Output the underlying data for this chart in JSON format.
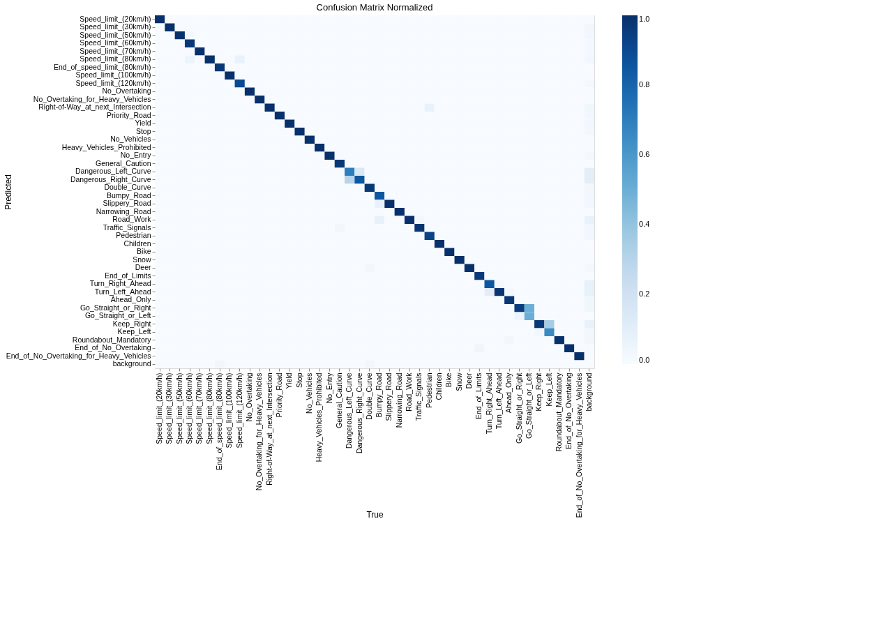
{
  "chart_data": {
    "type": "heatmap",
    "title": "Confusion Matrix Normalized",
    "xlabel": "True",
    "ylabel": "Predicted",
    "categories": [
      "Speed_limit_(20km/h)",
      "Speed_limit_(30km/h)",
      "Speed_limit_(50km/h)",
      "Speed_limit_(60km/h)",
      "Speed_limit_(70km/h)",
      "Speed_limit_(80km/h)",
      "End_of_speed_limit_(80km/h)",
      "Speed_limit_(100km/h)",
      "Speed_limit_(120km/h)",
      "No_Overtaking",
      "No_Overtaking_for_Heavy_Vehicles",
      "Right-of-Way_at_next_Intersection",
      "Priority_Road",
      "Yield",
      "Stop",
      "No_Vehicles",
      "Heavy_Vehicles_Prohibited",
      "No_Entry",
      "General_Caution",
      "Dangerous_Left_Curve",
      "Dangerous_Right_Curve",
      "Double_Curve",
      "Bumpy_Road",
      "Slippery_Road",
      "Narrowing_Road",
      "Road_Work",
      "Traffic_Signals",
      "Pedestrian",
      "Children",
      "Bike",
      "Snow",
      "Deer",
      "End_of_Limits",
      "Turn_Right_Ahead",
      "Turn_Left_Ahead",
      "Ahead_Only",
      "Go_Straight_or_Right",
      "Go_Straight_or_Left",
      "Keep_Right",
      "Keep_Left",
      "Roundabout_Mandatory",
      "End_of_No_Overtaking",
      "End_of_No_Overtaking_for_Heavy_Vehicles",
      "background"
    ],
    "y_categories": [
      "Speed_limit_(20km/h)",
      "Speed_limit_(30km/h)",
      "Speed_limit_(50km/h)",
      "Speed_limit_(60km/h)",
      "Speed_limit_(70km/h)",
      "Speed_limit_(80km/h)",
      "End_of_speed_limit_(80km/h)",
      "Speed_limit_(100km/h)",
      "Speed_limit_(120km/h)",
      "No_Overtaking",
      "No_Overtaking_for_Heavy_Vehicles",
      "Right-of-Way_at_next_Intersection",
      "Priority_Road",
      "Yield",
      "Stop",
      "No_Vehicles",
      "Heavy_Vehicles_Prohibited",
      "No_Entry",
      "General_Caution",
      "Dangerous_Left_Curve",
      "Dangerous_Right_Curve",
      "Double_Curve",
      "Bumpy_Road",
      "Slippery_Road",
      "Narrowing_Road",
      "Road_Work",
      "Traffic_Signals",
      "Pedestrian",
      "Children",
      "Bike",
      "Snow",
      "Deer",
      "End_of_Limits",
      "Turn_Right_Ahead",
      "Turn_Left_Ahead",
      "Ahead_Only",
      "Go_Straight_or_Right",
      "Go_Straight_or_Left",
      "Keep_Right",
      "Keep_Left",
      "Roundabout_Mandatory",
      "End_of_No_Overtaking",
      "End_of_No_Overtaking_for_Heavy_Vehicles",
      "background"
    ],
    "cells": [
      [
        1,
        0,
        0,
        0,
        0,
        0,
        0,
        0,
        0,
        0,
        0,
        0,
        0,
        0,
        0,
        0,
        0,
        0,
        0,
        0,
        0,
        0,
        0,
        0,
        0,
        0,
        0,
        0,
        0,
        0,
        0,
        0,
        0,
        0,
        0,
        0,
        0,
        0,
        0,
        0,
        0,
        0,
        0,
        0
      ],
      [
        0,
        1,
        0,
        0,
        0,
        0,
        0,
        0,
        0,
        0,
        0,
        0,
        0,
        0,
        0,
        0,
        0,
        0,
        0,
        0,
        0,
        0,
        0,
        0,
        0,
        0,
        0,
        0,
        0,
        0,
        0,
        0,
        0,
        0,
        0,
        0,
        0,
        0,
        0,
        0,
        0,
        0,
        0,
        0.03
      ],
      [
        0,
        0,
        1,
        0.02,
        0,
        0,
        0,
        0,
        0,
        0,
        0,
        0,
        0,
        0,
        0,
        0,
        0,
        0,
        0,
        0,
        0,
        0,
        0,
        0,
        0,
        0,
        0,
        0,
        0,
        0,
        0,
        0,
        0,
        0,
        0,
        0,
        0,
        0,
        0,
        0,
        0,
        0,
        0,
        0.03
      ],
      [
        0,
        0,
        0,
        0.97,
        0,
        0,
        0,
        0,
        0,
        0,
        0,
        0,
        0,
        0,
        0,
        0,
        0,
        0,
        0,
        0,
        0,
        0,
        0,
        0,
        0,
        0,
        0,
        0,
        0,
        0,
        0,
        0,
        0,
        0,
        0,
        0,
        0,
        0,
        0,
        0,
        0,
        0,
        0,
        0.02
      ],
      [
        0,
        0,
        0,
        0,
        1,
        0,
        0,
        0,
        0,
        0,
        0,
        0,
        0,
        0,
        0,
        0,
        0,
        0,
        0,
        0,
        0,
        0,
        0,
        0,
        0,
        0,
        0,
        0,
        0,
        0,
        0,
        0,
        0,
        0,
        0,
        0,
        0,
        0,
        0,
        0,
        0,
        0,
        0,
        0.02
      ],
      [
        0,
        0,
        0,
        0.05,
        0,
        1,
        0,
        0,
        0.07,
        0,
        0,
        0,
        0,
        0,
        0,
        0,
        0,
        0,
        0,
        0,
        0,
        0,
        0,
        0,
        0,
        0,
        0,
        0,
        0,
        0,
        0,
        0,
        0,
        0,
        0,
        0,
        0,
        0,
        0,
        0,
        0,
        0,
        0,
        0.03
      ],
      [
        0,
        0,
        0,
        0,
        0,
        0,
        0.97,
        0,
        0,
        0,
        0,
        0,
        0,
        0,
        0,
        0,
        0,
        0,
        0,
        0,
        0,
        0,
        0,
        0,
        0,
        0,
        0,
        0,
        0,
        0,
        0,
        0,
        0,
        0,
        0,
        0,
        0,
        0,
        0,
        0,
        0,
        0,
        0,
        0
      ],
      [
        0,
        0,
        0,
        0,
        0,
        0,
        0,
        1,
        0,
        0,
        0,
        0,
        0,
        0,
        0,
        0,
        0,
        0,
        0,
        0,
        0,
        0,
        0,
        0,
        0,
        0,
        0,
        0,
        0,
        0,
        0,
        0,
        0,
        0,
        0,
        0,
        0,
        0,
        0,
        0,
        0,
        0,
        0,
        0
      ],
      [
        0,
        0,
        0,
        0,
        0,
        0,
        0,
        0,
        0.9,
        0,
        0,
        0,
        0,
        0,
        0,
        0,
        0,
        0,
        0,
        0,
        0,
        0,
        0,
        0,
        0,
        0,
        0,
        0,
        0,
        0,
        0,
        0,
        0,
        0,
        0,
        0,
        0,
        0,
        0,
        0,
        0,
        0,
        0,
        0.02
      ],
      [
        0,
        0,
        0,
        0,
        0,
        0,
        0,
        0,
        0,
        1,
        0,
        0,
        0,
        0,
        0,
        0,
        0,
        0,
        0,
        0,
        0,
        0,
        0,
        0,
        0,
        0,
        0,
        0,
        0,
        0,
        0,
        0,
        0,
        0,
        0,
        0,
        0,
        0,
        0,
        0,
        0,
        0,
        0,
        0
      ],
      [
        0,
        0,
        0,
        0,
        0,
        0,
        0,
        0,
        0,
        0,
        1,
        0,
        0,
        0,
        0,
        0,
        0,
        0,
        0,
        0,
        0,
        0,
        0,
        0,
        0,
        0,
        0,
        0,
        0,
        0,
        0,
        0,
        0,
        0,
        0,
        0,
        0,
        0,
        0,
        0,
        0,
        0,
        0,
        0
      ],
      [
        0,
        0,
        0,
        0,
        0,
        0,
        0,
        0,
        0,
        0,
        0,
        1,
        0,
        0,
        0,
        0,
        0,
        0,
        0,
        0,
        0,
        0,
        0,
        0,
        0,
        0,
        0,
        0.07,
        0,
        0,
        0,
        0,
        0,
        0,
        0,
        0,
        0,
        0,
        0,
        0,
        0,
        0,
        0,
        0.04
      ],
      [
        0,
        0,
        0,
        0,
        0,
        0,
        0,
        0,
        0,
        0,
        0,
        0,
        1,
        0,
        0,
        0,
        0,
        0,
        0,
        0,
        0,
        0,
        0,
        0,
        0,
        0,
        0,
        0,
        0,
        0,
        0,
        0,
        0,
        0,
        0,
        0,
        0,
        0,
        0,
        0,
        0,
        0,
        0,
        0.03
      ],
      [
        0,
        0,
        0,
        0,
        0,
        0,
        0,
        0,
        0,
        0,
        0,
        0,
        0,
        1,
        0,
        0,
        0,
        0,
        0,
        0,
        0,
        0,
        0,
        0,
        0,
        0,
        0,
        0,
        0,
        0,
        0,
        0,
        0,
        0,
        0,
        0,
        0,
        0,
        0,
        0,
        0,
        0,
        0,
        0.03
      ],
      [
        0,
        0,
        0,
        0,
        0,
        0,
        0,
        0,
        0,
        0,
        0,
        0,
        0,
        0,
        1,
        0,
        0,
        0,
        0,
        0,
        0,
        0,
        0,
        0,
        0,
        0,
        0,
        0,
        0,
        0,
        0,
        0,
        0,
        0,
        0,
        0,
        0,
        0,
        0,
        0,
        0,
        0,
        0,
        0.02
      ],
      [
        0,
        0,
        0,
        0,
        0,
        0,
        0,
        0,
        0,
        0,
        0,
        0,
        0,
        0,
        0,
        1,
        0,
        0,
        0,
        0,
        0,
        0,
        0,
        0,
        0,
        0,
        0,
        0,
        0,
        0,
        0,
        0,
        0,
        0,
        0,
        0,
        0,
        0,
        0,
        0,
        0,
        0,
        0,
        0
      ],
      [
        0,
        0,
        0,
        0,
        0,
        0,
        0,
        0,
        0,
        0,
        0,
        0,
        0,
        0,
        0,
        0,
        1,
        0,
        0,
        0,
        0,
        0,
        0,
        0,
        0,
        0,
        0,
        0,
        0,
        0,
        0,
        0,
        0,
        0,
        0,
        0,
        0,
        0,
        0,
        0,
        0,
        0,
        0,
        0
      ],
      [
        0,
        0,
        0,
        0,
        0,
        0,
        0,
        0,
        0,
        0,
        0,
        0,
        0,
        0,
        0,
        0,
        0,
        1,
        0,
        0,
        0,
        0,
        0,
        0,
        0,
        0,
        0,
        0,
        0,
        0,
        0,
        0,
        0,
        0,
        0,
        0,
        0,
        0,
        0,
        0,
        0,
        0,
        0,
        0.02
      ],
      [
        0,
        0,
        0,
        0,
        0,
        0,
        0,
        0,
        0,
        0,
        0,
        0,
        0,
        0,
        0,
        0,
        0,
        0,
        0.97,
        0,
        0,
        0,
        0,
        0,
        0,
        0,
        0,
        0,
        0,
        0,
        0,
        0,
        0,
        0,
        0,
        0,
        0,
        0,
        0,
        0,
        0,
        0,
        0,
        0
      ],
      [
        0,
        0,
        0,
        0,
        0,
        0,
        0,
        0,
        0,
        0,
        0,
        0,
        0,
        0,
        0,
        0,
        0,
        0,
        0,
        0.7,
        0.15,
        0,
        0,
        0,
        0,
        0,
        0,
        0,
        0,
        0,
        0,
        0,
        0,
        0,
        0,
        0,
        0,
        0,
        0,
        0,
        0,
        0,
        0,
        0.1
      ],
      [
        0,
        0,
        0,
        0,
        0,
        0,
        0,
        0,
        0,
        0,
        0,
        0,
        0,
        0,
        0,
        0,
        0,
        0,
        0,
        0.3,
        0.85,
        0,
        0,
        0,
        0,
        0,
        0,
        0,
        0,
        0,
        0,
        0,
        0,
        0,
        0,
        0,
        0,
        0,
        0,
        0,
        0,
        0,
        0,
        0.1
      ],
      [
        0,
        0,
        0,
        0,
        0,
        0,
        0,
        0,
        0,
        0,
        0,
        0,
        0,
        0,
        0,
        0,
        0,
        0,
        0,
        0,
        0,
        0.97,
        0,
        0,
        0,
        0,
        0,
        0,
        0,
        0,
        0,
        0,
        0,
        0,
        0,
        0,
        0,
        0,
        0,
        0,
        0,
        0,
        0,
        0.03
      ],
      [
        0,
        0,
        0,
        0,
        0,
        0,
        0,
        0,
        0,
        0,
        0,
        0,
        0,
        0,
        0,
        0,
        0,
        0,
        0,
        0,
        0,
        0,
        0.85,
        0,
        0,
        0,
        0,
        0,
        0,
        0,
        0,
        0,
        0,
        0,
        0,
        0,
        0,
        0,
        0,
        0,
        0,
        0,
        0,
        0.03
      ],
      [
        0,
        0,
        0,
        0,
        0,
        0,
        0,
        0,
        0,
        0,
        0,
        0,
        0,
        0,
        0,
        0,
        0,
        0,
        0,
        0,
        0,
        0,
        0.07,
        1,
        0,
        0,
        0,
        0,
        0,
        0,
        0,
        0,
        0,
        0,
        0,
        0,
        0,
        0,
        0,
        0,
        0,
        0,
        0,
        0.03
      ],
      [
        0,
        0,
        0,
        0,
        0,
        0,
        0,
        0,
        0,
        0,
        0,
        0,
        0,
        0,
        0,
        0,
        0,
        0,
        0,
        0,
        0,
        0,
        0,
        0,
        1,
        0,
        0,
        0,
        0,
        0,
        0,
        0,
        0,
        0,
        0,
        0,
        0,
        0,
        0,
        0,
        0,
        0,
        0,
        0
      ],
      [
        0,
        0,
        0,
        0,
        0,
        0,
        0,
        0,
        0,
        0,
        0,
        0,
        0,
        0,
        0,
        0,
        0,
        0,
        0,
        0,
        0,
        0,
        0.08,
        0,
        0,
        1,
        0.02,
        0,
        0,
        0,
        0,
        0,
        0,
        0,
        0,
        0,
        0,
        0,
        0,
        0,
        0,
        0,
        0,
        0.07
      ],
      [
        0,
        0,
        0,
        0,
        0,
        0,
        0,
        0,
        0,
        0,
        0,
        0,
        0,
        0,
        0,
        0,
        0,
        0,
        0.03,
        0,
        0,
        0,
        0,
        0,
        0,
        0,
        0.98,
        0,
        0,
        0,
        0,
        0,
        0,
        0,
        0,
        0,
        0,
        0,
        0,
        0,
        0,
        0,
        0,
        0.03
      ],
      [
        0,
        0,
        0,
        0,
        0,
        0,
        0,
        0,
        0,
        0,
        0,
        0,
        0,
        0,
        0,
        0,
        0,
        0,
        0,
        0,
        0,
        0,
        0,
        0,
        0,
        0,
        0,
        0.93,
        0,
        0,
        0,
        0,
        0,
        0,
        0,
        0,
        0,
        0,
        0,
        0,
        0,
        0,
        0,
        0.03
      ],
      [
        0,
        0,
        0,
        0,
        0,
        0,
        0,
        0,
        0,
        0,
        0,
        0,
        0,
        0,
        0,
        0,
        0,
        0,
        0,
        0,
        0,
        0,
        0,
        0,
        0,
        0,
        0,
        0,
        1,
        0,
        0,
        0,
        0,
        0,
        0,
        0,
        0,
        0,
        0,
        0,
        0,
        0,
        0,
        0
      ],
      [
        0,
        0,
        0,
        0,
        0,
        0,
        0,
        0,
        0,
        0,
        0,
        0,
        0,
        0,
        0,
        0,
        0,
        0,
        0,
        0,
        0,
        0,
        0,
        0,
        0,
        0,
        0,
        0,
        0,
        1,
        0,
        0,
        0,
        0,
        0,
        0,
        0,
        0,
        0,
        0,
        0,
        0,
        0,
        0
      ],
      [
        0,
        0,
        0,
        0,
        0,
        0,
        0,
        0,
        0,
        0,
        0,
        0,
        0,
        0,
        0,
        0,
        0,
        0,
        0,
        0,
        0,
        0,
        0,
        0,
        0,
        0,
        0,
        0,
        0,
        0,
        1,
        0,
        0,
        0,
        0,
        0,
        0,
        0,
        0,
        0,
        0,
        0,
        0,
        0
      ],
      [
        0,
        0,
        0,
        0,
        0,
        0,
        0,
        0,
        0,
        0,
        0,
        0,
        0,
        0,
        0,
        0,
        0,
        0,
        0,
        0,
        0,
        0.03,
        0,
        0,
        0,
        0,
        0,
        0,
        0,
        0,
        0,
        1,
        0,
        0,
        0,
        0,
        0,
        0,
        0,
        0,
        0,
        0,
        0,
        0.02
      ],
      [
        0,
        0,
        0,
        0,
        0,
        0,
        0,
        0,
        0,
        0,
        0,
        0,
        0,
        0,
        0,
        0,
        0,
        0,
        0,
        0,
        0,
        0,
        0,
        0,
        0,
        0,
        0,
        0,
        0,
        0,
        0,
        0,
        0.96,
        0,
        0,
        0,
        0,
        0,
        0,
        0,
        0,
        0,
        0,
        0
      ],
      [
        0,
        0,
        0,
        0,
        0,
        0,
        0,
        0,
        0,
        0,
        0,
        0,
        0,
        0,
        0,
        0,
        0,
        0,
        0,
        0,
        0,
        0,
        0,
        0,
        0,
        0,
        0,
        0,
        0,
        0,
        0,
        0,
        0,
        0.85,
        0.02,
        0,
        0,
        0,
        0,
        0,
        0,
        0,
        0,
        0.08
      ],
      [
        0,
        0,
        0,
        0,
        0,
        0,
        0,
        0,
        0,
        0,
        0,
        0,
        0,
        0,
        0,
        0,
        0,
        0,
        0,
        0,
        0,
        0,
        0,
        0,
        0,
        0,
        0,
        0,
        0,
        0,
        0,
        0,
        0,
        0.1,
        0.98,
        0.02,
        0,
        0,
        0,
        0,
        0,
        0,
        0,
        0.08
      ],
      [
        0,
        0,
        0,
        0,
        0,
        0,
        0,
        0,
        0,
        0,
        0,
        0,
        0,
        0,
        0,
        0,
        0,
        0,
        0,
        0,
        0,
        0,
        0,
        0,
        0,
        0,
        0,
        0,
        0,
        0,
        0,
        0,
        0,
        0,
        0,
        0.97,
        0,
        0,
        0,
        0,
        0,
        0,
        0,
        0.04
      ],
      [
        0,
        0,
        0,
        0,
        0,
        0,
        0,
        0,
        0,
        0,
        0,
        0,
        0,
        0,
        0,
        0,
        0,
        0,
        0,
        0,
        0,
        0,
        0,
        0,
        0,
        0,
        0,
        0,
        0,
        0,
        0,
        0,
        0,
        0,
        0,
        0,
        0.95,
        0.5,
        0,
        0,
        0,
        0,
        0,
        0.04
      ],
      [
        0,
        0,
        0,
        0,
        0,
        0,
        0,
        0,
        0,
        0,
        0,
        0,
        0,
        0,
        0,
        0,
        0,
        0,
        0,
        0,
        0,
        0,
        0,
        0,
        0,
        0,
        0,
        0,
        0,
        0,
        0,
        0,
        0,
        0,
        0,
        0,
        0.05,
        0.5,
        0,
        0,
        0,
        0,
        0,
        0
      ],
      [
        0,
        0,
        0,
        0,
        0,
        0,
        0,
        0,
        0,
        0,
        0,
        0,
        0,
        0,
        0,
        0,
        0,
        0,
        0,
        0,
        0,
        0,
        0,
        0,
        0,
        0,
        0,
        0,
        0,
        0,
        0,
        0,
        0,
        0,
        0,
        0,
        0,
        0,
        0.97,
        0.35,
        0,
        0,
        0,
        0.07
      ],
      [
        0,
        0,
        0,
        0,
        0,
        0,
        0,
        0,
        0,
        0,
        0,
        0,
        0,
        0,
        0,
        0,
        0,
        0,
        0,
        0,
        0,
        0,
        0,
        0,
        0,
        0,
        0,
        0,
        0,
        0,
        0,
        0,
        0,
        0,
        0,
        0,
        0,
        0,
        0.03,
        0.65,
        0,
        0,
        0,
        0.03
      ],
      [
        0,
        0,
        0,
        0,
        0,
        0,
        0,
        0,
        0,
        0,
        0,
        0,
        0,
        0,
        0,
        0,
        0,
        0,
        0,
        0,
        0,
        0,
        0,
        0,
        0,
        0,
        0,
        0,
        0,
        0,
        0,
        0,
        0,
        0,
        0,
        0.03,
        0,
        0,
        0,
        0,
        1,
        0,
        0,
        0.03
      ],
      [
        0,
        0,
        0,
        0,
        0,
        0,
        0,
        0,
        0,
        0,
        0,
        0,
        0,
        0,
        0,
        0,
        0,
        0,
        0,
        0,
        0,
        0,
        0,
        0,
        0,
        0,
        0,
        0,
        0,
        0,
        0,
        0,
        0.04,
        0,
        0,
        0,
        0,
        0,
        0,
        0,
        0,
        1,
        0,
        0
      ],
      [
        0,
        0,
        0,
        0,
        0,
        0,
        0,
        0,
        0,
        0,
        0,
        0,
        0,
        0,
        0,
        0,
        0,
        0,
        0,
        0,
        0,
        0,
        0,
        0,
        0,
        0,
        0,
        0,
        0,
        0,
        0,
        0,
        0,
        0,
        0,
        0,
        0,
        0,
        0,
        0,
        0,
        0,
        1,
        0
      ],
      [
        0,
        0,
        0,
        0,
        0,
        0,
        0.03,
        0,
        0,
        0,
        0,
        0,
        0,
        0,
        0,
        0,
        0,
        0,
        0,
        0,
        0,
        0.03,
        0,
        0,
        0,
        0,
        0,
        0,
        0,
        0,
        0,
        0,
        0,
        0,
        0,
        0,
        0,
        0,
        0,
        0,
        0,
        0,
        0,
        0
      ]
    ],
    "clim": [
      0,
      1
    ],
    "cticks": [
      {
        "value": 0,
        "label": "0.0"
      },
      {
        "value": 0.2,
        "label": "0.2"
      },
      {
        "value": 0.4,
        "label": "0.4"
      },
      {
        "value": 0.6,
        "label": "0.6"
      },
      {
        "value": 0.8,
        "label": "0.8"
      },
      {
        "value": 1,
        "label": "1.0"
      }
    ],
    "grid": false
  }
}
